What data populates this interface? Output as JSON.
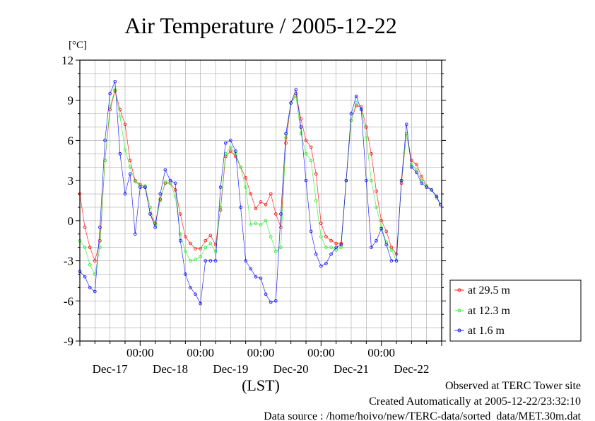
{
  "chart_data": {
    "type": "line",
    "title": "Air Temperature / 2005-12-22",
    "ylabel": "[°C]",
    "xlabel": "(LST)",
    "ylim": [
      -9,
      12
    ],
    "yticks": [
      12,
      9,
      6,
      3,
      0,
      -3,
      -6,
      -9
    ],
    "xlim": [
      "2005-12-17 00:00",
      "2005-12-23 00:00"
    ],
    "time_ticks": [
      {
        "at": "2005-12-18 00:00",
        "label": "00:00"
      },
      {
        "at": "2005-12-19 00:00",
        "label": "00:00"
      },
      {
        "at": "2005-12-20 00:00",
        "label": "00:00"
      },
      {
        "at": "2005-12-21 00:00",
        "label": "00:00"
      },
      {
        "at": "2005-12-22 00:00",
        "label": "00:00"
      }
    ],
    "day_labels": [
      {
        "date": "2005-12-17",
        "label": "Dec-17"
      },
      {
        "date": "2005-12-18",
        "label": "Dec-18"
      },
      {
        "date": "2005-12-19",
        "label": "Dec-19"
      },
      {
        "date": "2005-12-20",
        "label": "Dec-20"
      },
      {
        "date": "2005-12-21",
        "label": "Dec-21"
      },
      {
        "date": "2005-12-22",
        "label": "Dec-22"
      }
    ],
    "grid": true,
    "legend_position": "right",
    "x": [
      "2005-12-17 00:00",
      "2005-12-17 02:00",
      "2005-12-17 04:00",
      "2005-12-17 06:00",
      "2005-12-17 08:00",
      "2005-12-17 10:00",
      "2005-12-17 12:00",
      "2005-12-17 14:00",
      "2005-12-17 16:00",
      "2005-12-17 18:00",
      "2005-12-17 20:00",
      "2005-12-17 22:00",
      "2005-12-18 00:00",
      "2005-12-18 02:00",
      "2005-12-18 04:00",
      "2005-12-18 06:00",
      "2005-12-18 08:00",
      "2005-12-18 10:00",
      "2005-12-18 12:00",
      "2005-12-18 14:00",
      "2005-12-18 16:00",
      "2005-12-18 18:00",
      "2005-12-18 20:00",
      "2005-12-18 22:00",
      "2005-12-19 00:00",
      "2005-12-19 02:00",
      "2005-12-19 04:00",
      "2005-12-19 06:00",
      "2005-12-19 08:00",
      "2005-12-19 10:00",
      "2005-12-19 12:00",
      "2005-12-19 14:00",
      "2005-12-19 16:00",
      "2005-12-19 18:00",
      "2005-12-19 20:00",
      "2005-12-19 22:00",
      "2005-12-20 00:00",
      "2005-12-20 02:00",
      "2005-12-20 04:00",
      "2005-12-20 06:00",
      "2005-12-20 08:00",
      "2005-12-20 10:00",
      "2005-12-20 12:00",
      "2005-12-20 14:00",
      "2005-12-20 16:00",
      "2005-12-20 18:00",
      "2005-12-20 20:00",
      "2005-12-20 22:00",
      "2005-12-21 00:00",
      "2005-12-21 02:00",
      "2005-12-21 04:00",
      "2005-12-21 06:00",
      "2005-12-21 08:00",
      "2005-12-21 10:00",
      "2005-12-21 12:00",
      "2005-12-21 14:00",
      "2005-12-21 16:00",
      "2005-12-21 18:00",
      "2005-12-21 20:00",
      "2005-12-21 22:00",
      "2005-12-22 00:00",
      "2005-12-22 02:00",
      "2005-12-22 04:00",
      "2005-12-22 06:00",
      "2005-12-22 08:00",
      "2005-12-22 10:00",
      "2005-12-22 12:00",
      "2005-12-22 14:00",
      "2005-12-22 16:00",
      "2005-12-22 18:00",
      "2005-12-22 20:00",
      "2005-12-22 22:00",
      "2005-12-22 23:30"
    ],
    "series": [
      {
        "name": "at 29.5 m",
        "color": "#ff0000",
        "values": [
          2.0,
          -0.5,
          -2.0,
          -3.0,
          -1.5,
          4.5,
          8.3,
          9.7,
          8.3,
          7.2,
          4.5,
          3.0,
          2.7,
          2.5,
          0.5,
          -0.2,
          1.6,
          2.8,
          2.8,
          2.3,
          0.5,
          -1.2,
          -1.7,
          -2.1,
          -2.1,
          -1.5,
          -1.1,
          -1.8,
          0.8,
          4.8,
          5.2,
          4.8,
          4.0,
          3.2,
          2.0,
          0.9,
          1.4,
          1.2,
          2.0,
          0.5,
          -0.5,
          5.8,
          8.8,
          9.5,
          7.6,
          6.0,
          5.5,
          3.5,
          -0.2,
          -1.2,
          -1.5,
          -1.7,
          -1.7,
          3.0,
          7.5,
          8.6,
          8.5,
          7.0,
          5.0,
          2.2,
          0.0,
          -0.8,
          -2.0,
          -2.5,
          2.8,
          6.5,
          4.5,
          4.2,
          3.3,
          2.6,
          2.3,
          1.8,
          1.2
        ]
      },
      {
        "name": "at 12.3 m",
        "color": "#22ee22",
        "values": [
          -1.5,
          -2.0,
          -3.3,
          -4.0,
          -2.0,
          4.5,
          8.5,
          9.8,
          7.8,
          5.3,
          4.0,
          2.9,
          2.6,
          2.6,
          1.0,
          -0.3,
          1.5,
          2.9,
          2.8,
          1.8,
          -1.0,
          -2.3,
          -3.0,
          -2.9,
          -2.7,
          -2.0,
          -1.7,
          -2.3,
          1.0,
          5.0,
          5.5,
          5.0,
          4.0,
          2.5,
          -0.3,
          -0.2,
          -0.3,
          0.0,
          -1.2,
          -2.3,
          -2.0,
          6.2,
          8.8,
          9.3,
          6.5,
          5.0,
          4.5,
          1.5,
          -1.2,
          -2.0,
          -2.0,
          -2.2,
          -2.0,
          3.0,
          7.5,
          8.8,
          8.4,
          6.2,
          3.0,
          1.0,
          -0.5,
          -1.6,
          -2.2,
          -3.0,
          3.0,
          6.5,
          4.2,
          3.8,
          3.0,
          2.6,
          2.3,
          1.7,
          1.2
        ]
      },
      {
        "name": "at 1.6 m",
        "color": "#0000ff",
        "values": [
          -3.8,
          -4.2,
          -5.0,
          -5.3,
          -0.5,
          6.0,
          9.5,
          10.4,
          5.0,
          2.0,
          3.5,
          -1.0,
          2.5,
          2.5,
          0.5,
          -0.5,
          2.0,
          3.8,
          3.0,
          2.8,
          -1.5,
          -4.0,
          -5.0,
          -5.5,
          -6.2,
          -3.0,
          -3.0,
          -3.0,
          2.5,
          5.8,
          6.0,
          5.2,
          1.0,
          -3.0,
          -3.6,
          -4.2,
          -4.3,
          -5.5,
          -6.1,
          -6.0,
          0.5,
          6.5,
          8.8,
          9.8,
          7.0,
          3.0,
          -0.8,
          -2.5,
          -3.4,
          -3.2,
          -2.5,
          -2.0,
          -1.8,
          3.0,
          8.0,
          9.3,
          8.3,
          3.0,
          -2.0,
          -1.5,
          -0.6,
          -1.8,
          -3.0,
          -3.0,
          3.0,
          7.2,
          4.0,
          3.6,
          2.8,
          2.5,
          2.3,
          1.8,
          1.2
        ]
      }
    ]
  },
  "footer": {
    "site": "Observed at TERC Tower site",
    "created": "Created Automatically at 2005-12-22/23:32:10",
    "source": "Data source : /home/hoivo/new/TERC-data/sorted  data/MET.30m.dat"
  }
}
